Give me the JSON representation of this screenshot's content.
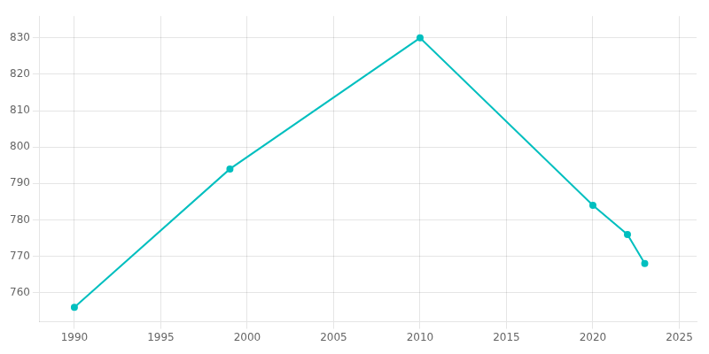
{
  "chart_data": {
    "type": "line",
    "x": [
      1990,
      1999,
      2010,
      2020,
      2022,
      2023
    ],
    "values": [
      756,
      794,
      830,
      784,
      776,
      768
    ],
    "color": "#00BFBF",
    "marker": "circle",
    "xlim": [
      1988,
      2026
    ],
    "xticks": [
      1990,
      1995,
      2000,
      2005,
      2010,
      2015,
      2020,
      2025
    ],
    "ylim": [
      752,
      836
    ],
    "yticks": [
      760,
      770,
      780,
      790,
      800,
      810,
      820,
      830
    ],
    "grid": true
  }
}
